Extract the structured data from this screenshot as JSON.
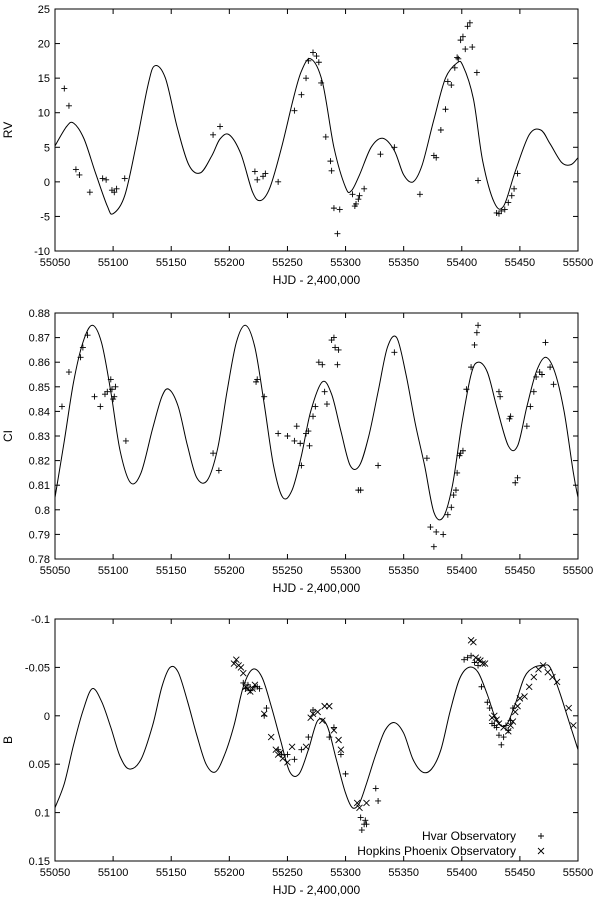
{
  "chart_data": [
    {
      "type": "scatter",
      "xlabel": "HJD - 2,400,000",
      "ylabel": "RV",
      "xlim": [
        55050,
        55500
      ],
      "ylim": [
        -10,
        25
      ],
      "y_inverted": false,
      "xticks": [
        55050,
        55100,
        55150,
        55200,
        55250,
        55300,
        55350,
        55400,
        55450,
        55500
      ],
      "xtick_labels": [
        "55050",
        "55100",
        "55150",
        "55200",
        "55250",
        "55300",
        "55350",
        "55400",
        "55450",
        "55500"
      ],
      "yticks": [
        -10,
        -5,
        0,
        5,
        10,
        15,
        20,
        25
      ],
      "ytick_labels": [
        "-10",
        "-5",
        "0",
        "5",
        "10",
        "15",
        "20",
        "25"
      ],
      "model": {
        "x": [
          55050,
          55060,
          55066,
          55075,
          55085,
          55095,
          55100,
          55110,
          55120,
          55130,
          55136,
          55145,
          55155,
          55165,
          55175,
          55185,
          55192,
          55200,
          55210,
          55220,
          55227,
          55235,
          55245,
          55255,
          55262,
          55270,
          55280,
          55290,
          55300,
          55305,
          55312,
          55322,
          55332,
          55342,
          55350,
          55358,
          55366,
          55376,
          55386,
          55396,
          55401,
          55410,
          55418,
          55428,
          55436,
          55446,
          55458,
          55468,
          55476,
          55486,
          55494,
          55500
        ],
        "y": [
          5.2,
          8.0,
          8.5,
          6.2,
          1.2,
          -3.5,
          -4.6,
          -2.0,
          5.5,
          14.0,
          16.8,
          15.0,
          8.0,
          2.5,
          1.3,
          3.8,
          6.2,
          6.8,
          4.0,
          -1.5,
          -2.7,
          -0.8,
          5.0,
          12.0,
          16.0,
          17.8,
          14.5,
          5.0,
          -0.8,
          -1.3,
          1.0,
          5.0,
          6.3,
          4.5,
          1.0,
          0.0,
          2.5,
          9.0,
          15.0,
          17.2,
          16.8,
          12.0,
          3.0,
          -3.0,
          -3.5,
          1.5,
          6.8,
          7.5,
          5.5,
          2.8,
          2.5,
          3.5
        ]
      },
      "series": [
        {
          "name": "",
          "marker": "plus",
          "x": [
            55058,
            55062,
            55068,
            55071,
            55080,
            55091,
            55094,
            55099,
            55101,
            55103,
            55110,
            55186,
            55192,
            55222,
            55224,
            55229,
            55231,
            55242,
            55256,
            55262,
            55266,
            55268,
            55272,
            55275,
            55277,
            55279,
            55283,
            55287,
            55288,
            55290,
            55293,
            55295,
            55306,
            55308,
            55309,
            55311,
            55312,
            55316,
            55330,
            55342,
            55364,
            55376,
            55378,
            55382,
            55386,
            55388,
            55391,
            55394,
            55396,
            55397,
            55399,
            55401,
            55403,
            55405,
            55407,
            55409,
            55413,
            55414,
            55430,
            55432,
            55434,
            55437,
            55440,
            55443,
            55445,
            55448
          ],
          "y": [
            13.5,
            11.0,
            1.8,
            1.0,
            -1.5,
            0.5,
            0.3,
            -1.2,
            -1.5,
            -1.0,
            0.5,
            6.8,
            8.0,
            1.5,
            0.3,
            0.8,
            1.2,
            0.0,
            10.3,
            12.6,
            15.0,
            17.5,
            18.7,
            18.2,
            17.3,
            14.3,
            6.5,
            3.0,
            1.6,
            -3.8,
            -7.5,
            -4.0,
            -1.8,
            -3.5,
            -3.2,
            -2.5,
            -2.0,
            -1.0,
            4.0,
            5.0,
            -1.8,
            3.8,
            3.5,
            7.5,
            10.5,
            14.5,
            14.0,
            16.5,
            18.0,
            17.8,
            20.5,
            21.0,
            19.2,
            22.5,
            23.0,
            19.5,
            15.8,
            0.2,
            -4.5,
            -4.6,
            -4.2,
            -4.0,
            -3.0,
            -2.0,
            -1.0,
            1.2
          ]
        }
      ]
    },
    {
      "type": "scatter",
      "xlabel": "HJD - 2,400,000",
      "ylabel": "CI",
      "xlim": [
        55050,
        55500
      ],
      "ylim": [
        0.78,
        0.88
      ],
      "y_inverted": false,
      "xticks": [
        55050,
        55100,
        55150,
        55200,
        55250,
        55300,
        55350,
        55400,
        55450,
        55500
      ],
      "xtick_labels": [
        "55050",
        "55100",
        "55150",
        "55200",
        "55250",
        "55300",
        "55350",
        "55400",
        "55450",
        "55500"
      ],
      "yticks": [
        0.78,
        0.79,
        0.8,
        0.81,
        0.82,
        0.83,
        0.84,
        0.85,
        0.86,
        0.87,
        0.88
      ],
      "ytick_labels": [
        "0.78",
        "0.79",
        "0.8",
        "0.81",
        "0.82",
        "0.83",
        "0.84",
        "0.85",
        "0.86",
        "0.87",
        "0.88"
      ],
      "model": {
        "x": [
          55050,
          55058,
          55066,
          55074,
          55082,
          55090,
          55098,
          55106,
          55115,
          55124,
          55134,
          55142,
          55148,
          55156,
          55164,
          55172,
          55181,
          55190,
          55198,
          55206,
          55214,
          55222,
          55230,
          55238,
          55246,
          55254,
          55262,
          55270,
          55280,
          55288,
          55296,
          55304,
          55312,
          55320,
          55328,
          55336,
          55344,
          55352,
          55360,
          55368,
          55376,
          55384,
          55392,
          55400,
          55408,
          55414,
          55422,
          55430,
          55440,
          55448,
          55456,
          55464,
          55472,
          55480,
          55488,
          55496,
          55500
        ],
        "y": [
          0.805,
          0.828,
          0.852,
          0.868,
          0.875,
          0.868,
          0.848,
          0.824,
          0.811,
          0.815,
          0.833,
          0.846,
          0.849,
          0.842,
          0.826,
          0.813,
          0.812,
          0.825,
          0.848,
          0.868,
          0.875,
          0.866,
          0.843,
          0.818,
          0.805,
          0.808,
          0.822,
          0.84,
          0.852,
          0.847,
          0.832,
          0.818,
          0.818,
          0.83,
          0.848,
          0.866,
          0.87,
          0.855,
          0.835,
          0.818,
          0.799,
          0.797,
          0.81,
          0.835,
          0.855,
          0.86,
          0.856,
          0.842,
          0.826,
          0.826,
          0.842,
          0.856,
          0.862,
          0.856,
          0.84,
          0.815,
          0.805
        ]
      },
      "series": [
        {
          "name": "",
          "marker": "plus",
          "x": [
            55056,
            55062,
            55072,
            55074,
            55078,
            55084,
            55089,
            55093,
            55095,
            55098,
            55099,
            55100,
            55101,
            55102,
            55111,
            55186,
            55191,
            55223,
            55224,
            55230,
            55242,
            55250,
            55256,
            55258,
            55261,
            55262,
            55266,
            55268,
            55269,
            55272,
            55274,
            55277,
            55280,
            55282,
            55284,
            55288,
            55290,
            55291,
            55293,
            55294,
            55311,
            55313,
            55328,
            55342,
            55370,
            55373,
            55376,
            55378,
            55384,
            55388,
            55391,
            55393,
            55395,
            55396,
            55398,
            55399,
            55401,
            55404,
            55408,
            55411,
            55413,
            55414,
            55432,
            55433,
            55441,
            55442,
            55446,
            55448,
            55456,
            55459,
            55462,
            55464,
            55467,
            55469,
            55472,
            55476,
            55479
          ],
          "y": [
            0.842,
            0.856,
            0.862,
            0.866,
            0.871,
            0.846,
            0.842,
            0.847,
            0.848,
            0.853,
            0.849,
            0.845,
            0.846,
            0.85,
            0.828,
            0.823,
            0.816,
            0.852,
            0.853,
            0.846,
            0.831,
            0.83,
            0.828,
            0.834,
            0.827,
            0.818,
            0.831,
            0.832,
            0.826,
            0.838,
            0.842,
            0.86,
            0.859,
            0.848,
            0.843,
            0.869,
            0.87,
            0.866,
            0.859,
            0.865,
            0.808,
            0.808,
            0.818,
            0.864,
            0.821,
            0.793,
            0.785,
            0.791,
            0.79,
            0.798,
            0.801,
            0.806,
            0.808,
            0.815,
            0.822,
            0.823,
            0.824,
            0.849,
            0.858,
            0.867,
            0.872,
            0.875,
            0.848,
            0.846,
            0.837,
            0.838,
            0.811,
            0.813,
            0.834,
            0.842,
            0.848,
            0.854,
            0.856,
            0.855,
            0.868,
            0.858,
            0.851
          ]
        }
      ]
    },
    {
      "type": "scatter",
      "xlabel": "HJD - 2,400,000",
      "ylabel": "B",
      "xlim": [
        55050,
        55500
      ],
      "ylim": [
        0.15,
        -0.1
      ],
      "y_inverted": true,
      "xticks": [
        55050,
        55100,
        55150,
        55200,
        55250,
        55300,
        55350,
        55400,
        55450,
        55500
      ],
      "xtick_labels": [
        "55050",
        "55100",
        "55150",
        "55200",
        "55250",
        "55300",
        "55350",
        "55400",
        "55450",
        "55500"
      ],
      "yticks": [
        -0.1,
        -0.05,
        0,
        0.05,
        0.1,
        0.15
      ],
      "ytick_labels": [
        "-0.1",
        "-0.05",
        "0",
        "0.05",
        "0.1",
        "0.15"
      ],
      "legend": "bottom-right",
      "model": {
        "x": [
          55050,
          55058,
          55066,
          55074,
          55082,
          55090,
          55098,
          55106,
          55114,
          55124,
          55134,
          55142,
          55149,
          55156,
          55164,
          55172,
          55180,
          55188,
          55196,
          55204,
          55212,
          55220,
          55228,
          55236,
          55244,
          55252,
          55260,
          55268,
          55276,
          55284,
          55292,
          55300,
          55306,
          55312,
          55318,
          55326,
          55334,
          55342,
          55350,
          55358,
          55366,
          55374,
          55382,
          55390,
          55398,
          55406,
          55414,
          55422,
          55430,
          55438,
          55446,
          55454,
          55462,
          55470,
          55476,
          55484,
          55492,
          55500
        ],
        "y": [
          0.095,
          0.07,
          0.03,
          -0.005,
          -0.028,
          -0.015,
          0.012,
          0.042,
          0.055,
          0.045,
          0.01,
          -0.03,
          -0.05,
          -0.045,
          -0.015,
          0.02,
          0.05,
          0.058,
          0.04,
          0.01,
          -0.03,
          -0.048,
          -0.04,
          -0.01,
          0.025,
          0.058,
          0.06,
          0.035,
          0.005,
          0.01,
          0.045,
          0.08,
          0.095,
          0.09,
          0.07,
          0.04,
          0.015,
          0.007,
          0.018,
          0.045,
          0.058,
          0.055,
          0.035,
          -0.005,
          -0.038,
          -0.05,
          -0.045,
          -0.022,
          0.005,
          0.01,
          -0.012,
          -0.04,
          -0.05,
          -0.052,
          -0.05,
          -0.025,
          0.005,
          0.035
        ]
      },
      "series": [
        {
          "name": "Hvar Observatory",
          "marker": "plus",
          "x": [
            55212,
            55214,
            55216,
            55218,
            55222,
            55224,
            55226,
            55230,
            55232,
            55242,
            55245,
            55250,
            55256,
            55262,
            55268,
            55272,
            55286,
            55290,
            55296,
            55300,
            55313,
            55314,
            55316,
            55317,
            55318,
            55326,
            55328,
            55402,
            55405,
            55408,
            55411,
            55414,
            55417,
            55422,
            55424,
            55426,
            55428,
            55430,
            55432,
            55434,
            55436,
            55438,
            55440,
            55442,
            55444
          ],
          "y": [
            -0.034,
            -0.028,
            -0.032,
            -0.026,
            -0.03,
            -0.03,
            -0.028,
            0.0,
            -0.008,
            0.035,
            0.04,
            0.04,
            0.045,
            0.035,
            0.022,
            -0.006,
            0.022,
            0.012,
            0.04,
            0.06,
            0.105,
            0.118,
            0.112,
            0.108,
            0.112,
            0.075,
            0.088,
            -0.058,
            -0.06,
            -0.062,
            -0.055,
            -0.052,
            -0.03,
            -0.014,
            -0.008,
            0.008,
            0.01,
            0.012,
            0.02,
            0.03,
            0.022,
            0.01,
            0.015,
            0.005,
            -0.008
          ]
        },
        {
          "name": "Hopkins Phoenix Observatory",
          "marker": "cross",
          "x": [
            55204,
            55206,
            55208,
            55210,
            55212,
            55214,
            55216,
            55218,
            55220,
            55222,
            55230,
            55236,
            55240,
            55242,
            55244,
            55246,
            55250,
            55254,
            55266,
            55270,
            55272,
            55276,
            55280,
            55282,
            55286,
            55290,
            55294,
            55296,
            55310,
            55312,
            55318,
            55408,
            55410,
            55412,
            55414,
            55416,
            55418,
            55420,
            55426,
            55428,
            55430,
            55432,
            55436,
            55440,
            55442,
            55444,
            55446,
            55448,
            55450,
            55454,
            55458,
            55462,
            55466,
            55470,
            55474,
            55478,
            55482,
            55492,
            55496
          ],
          "y": [
            -0.054,
            -0.058,
            -0.052,
            -0.05,
            -0.044,
            -0.03,
            -0.028,
            -0.025,
            -0.028,
            -0.032,
            -0.002,
            0.022,
            0.035,
            0.04,
            0.038,
            0.044,
            0.048,
            0.032,
            0.032,
            0.002,
            -0.002,
            -0.004,
            0.005,
            -0.01,
            -0.01,
            0.015,
            0.025,
            0.035,
            0.09,
            0.095,
            0.09,
            -0.078,
            -0.076,
            -0.06,
            -0.058,
            -0.057,
            -0.054,
            -0.054,
            0.002,
            0.0,
            0.004,
            0.008,
            0.012,
            0.016,
            0.01,
            0.006,
            -0.004,
            -0.01,
            -0.018,
            -0.02,
            -0.03,
            -0.04,
            -0.048,
            -0.052,
            -0.045,
            -0.04,
            -0.035,
            -0.008,
            0.01
          ]
        }
      ]
    }
  ]
}
